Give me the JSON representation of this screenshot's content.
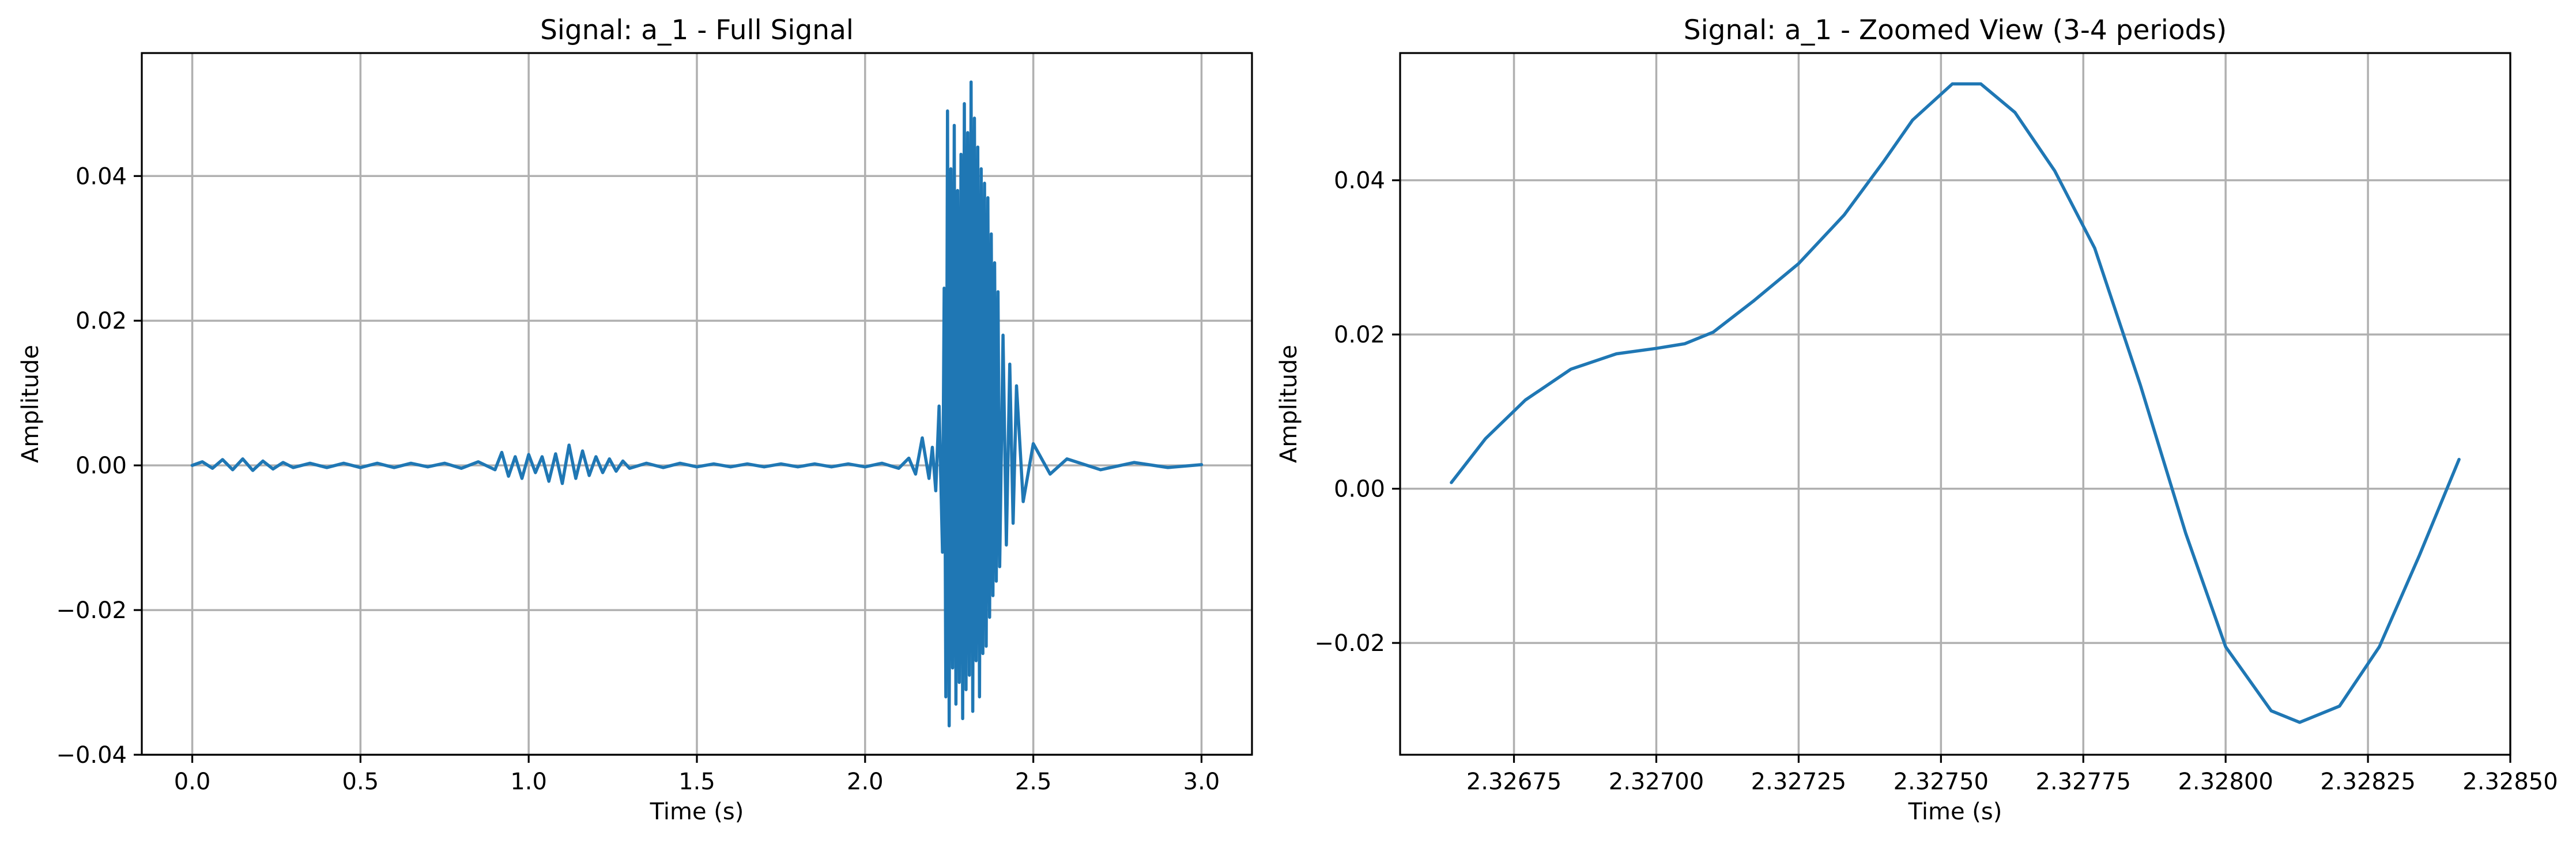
{
  "figure": {
    "background": "#ffffff",
    "line_color": "#1f77b4",
    "grid_color": "#b0b0b0"
  },
  "chart_data": [
    {
      "type": "line",
      "title": "Signal: a_1 - Full Signal",
      "xlabel": "Time (s)",
      "ylabel": "Amplitude",
      "xlim": [
        -0.15,
        3.15
      ],
      "ylim": [
        -0.04,
        0.057
      ],
      "grid": true,
      "x_ticks": [
        0.0,
        0.5,
        1.0,
        1.5,
        2.0,
        2.5,
        3.0
      ],
      "x_tick_labels": [
        "0.0",
        "0.5",
        "1.0",
        "1.5",
        "2.0",
        "2.5",
        "3.0"
      ],
      "y_ticks": [
        -0.04,
        -0.02,
        0.0,
        0.02,
        0.04
      ],
      "y_tick_labels": [
        "−0.04",
        "−0.02",
        "0.00",
        "0.02",
        "0.04"
      ],
      "series": [
        {
          "color": "#1f77b4",
          "x": [
            0.0,
            0.03,
            0.06,
            0.09,
            0.12,
            0.15,
            0.18,
            0.21,
            0.24,
            0.27,
            0.3,
            0.35,
            0.4,
            0.45,
            0.5,
            0.55,
            0.6,
            0.65,
            0.7,
            0.75,
            0.8,
            0.85,
            0.9,
            0.92,
            0.94,
            0.96,
            0.98,
            1.0,
            1.02,
            1.04,
            1.06,
            1.08,
            1.1,
            1.12,
            1.14,
            1.16,
            1.18,
            1.2,
            1.22,
            1.24,
            1.26,
            1.28,
            1.3,
            1.35,
            1.4,
            1.45,
            1.5,
            1.55,
            1.6,
            1.65,
            1.7,
            1.75,
            1.8,
            1.85,
            1.9,
            1.95,
            2.0,
            2.05,
            2.1,
            2.13,
            2.15,
            2.17,
            2.19,
            2.2,
            2.21,
            2.22,
            2.23,
            2.235,
            2.24,
            2.245,
            2.25,
            2.255,
            2.26,
            2.265,
            2.27,
            2.275,
            2.28,
            2.285,
            2.29,
            2.295,
            2.3,
            2.305,
            2.31,
            2.315,
            2.32,
            2.325,
            2.33,
            2.335,
            2.34,
            2.345,
            2.35,
            2.355,
            2.36,
            2.365,
            2.37,
            2.375,
            2.38,
            2.385,
            2.39,
            2.395,
            2.4,
            2.41,
            2.42,
            2.43,
            2.44,
            2.45,
            2.47,
            2.5,
            2.55,
            2.6,
            2.7,
            2.8,
            2.9,
            3.0
          ],
          "y": [
            0.0,
            0.0005,
            -0.0004,
            0.0008,
            -0.0006,
            0.0009,
            -0.0007,
            0.0006,
            -0.0005,
            0.0004,
            -0.0003,
            0.0003,
            -0.0003,
            0.0003,
            -0.0003,
            0.0003,
            -0.0003,
            0.0003,
            -0.0002,
            0.0003,
            -0.0004,
            0.0005,
            -0.0006,
            0.0018,
            -0.0015,
            0.0012,
            -0.0018,
            0.0015,
            -0.001,
            0.0012,
            -0.0022,
            0.0016,
            -0.0025,
            0.0028,
            -0.0018,
            0.002,
            -0.0014,
            0.0012,
            -0.001,
            0.0009,
            -0.0008,
            0.0006,
            -0.0004,
            0.0003,
            -0.0003,
            0.0003,
            -0.0002,
            0.0002,
            -0.0002,
            0.0002,
            -0.0002,
            0.0002,
            -0.0002,
            0.0002,
            -0.0002,
            0.0002,
            -0.0002,
            0.0003,
            -0.0004,
            0.001,
            -0.0012,
            0.0038,
            -0.0018,
            0.0025,
            -0.0035,
            0.0082,
            -0.012,
            0.0245,
            -0.032,
            0.049,
            -0.036,
            0.041,
            -0.028,
            0.047,
            -0.033,
            0.038,
            -0.03,
            0.043,
            -0.035,
            0.05,
            -0.031,
            0.046,
            -0.029,
            0.053,
            -0.034,
            0.048,
            -0.027,
            0.044,
            -0.032,
            0.041,
            -0.026,
            0.039,
            -0.025,
            0.037,
            -0.021,
            0.032,
            -0.018,
            0.028,
            -0.016,
            0.024,
            -0.014,
            0.018,
            -0.011,
            0.014,
            -0.008,
            0.011,
            -0.005,
            0.003,
            -0.0012,
            0.0009,
            -0.0006,
            0.0004,
            -0.0003,
            0.0001
          ]
        }
      ]
    },
    {
      "type": "line",
      "title": "Signal: a_1 - Zoomed View (3-4 periods)",
      "xlabel": "Time (s)",
      "ylabel": "Amplitude",
      "xlim": [
        2.32655,
        2.3285
      ],
      "ylim": [
        -0.0345,
        0.0565
      ],
      "grid": true,
      "x_ticks": [
        2.32675,
        2.327,
        2.32725,
        2.3275,
        2.32775,
        2.328,
        2.32825,
        2.3285
      ],
      "x_tick_labels": [
        "2.32675",
        "2.32700",
        "2.32725",
        "2.32750",
        "2.32775",
        "2.32800",
        "2.32825",
        "2.32850"
      ],
      "y_ticks": [
        -0.02,
        0.0,
        0.02,
        0.04
      ],
      "y_tick_labels": [
        "−0.02",
        "0.00",
        "0.02",
        "0.04"
      ],
      "series": [
        {
          "color": "#1f77b4",
          "x": [
            2.32664,
            2.3267,
            2.32677,
            2.32685,
            2.32693,
            2.327,
            2.32705,
            2.3271,
            2.32717,
            2.32725,
            2.32733,
            2.3274,
            2.32745,
            2.32752,
            2.32757,
            2.32763,
            2.3277,
            2.32777,
            2.32785,
            2.32793,
            2.328,
            2.32808,
            2.32813,
            2.3282,
            2.32827,
            2.32834,
            2.32841
          ],
          "y": [
            0.0008,
            0.0065,
            0.0115,
            0.0155,
            0.0175,
            0.0182,
            0.0188,
            0.0203,
            0.0243,
            0.0292,
            0.0355,
            0.0425,
            0.0478,
            0.0525,
            0.0525,
            0.0488,
            0.0412,
            0.0312,
            0.0135,
            -0.0058,
            -0.0205,
            -0.0288,
            -0.0303,
            -0.0282,
            -0.0205,
            -0.0087,
            0.0038
          ]
        }
      ]
    }
  ]
}
